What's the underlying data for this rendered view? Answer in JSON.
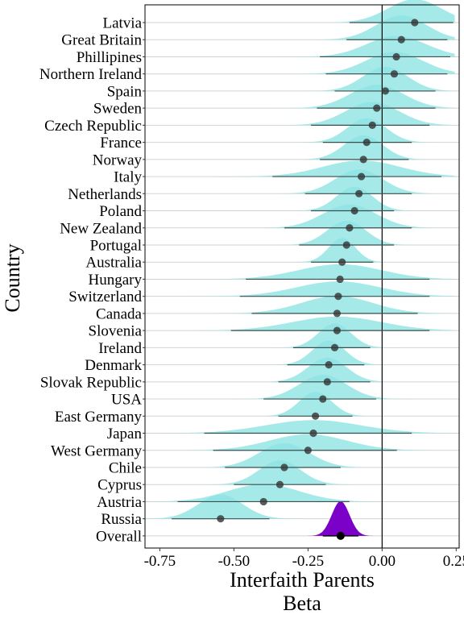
{
  "chart_data": {
    "type": "ridgeline",
    "title": "",
    "xlabel_line1": "Interfaith Parents",
    "xlabel_line2": "Beta",
    "ylabel": "Country",
    "xlim": [
      -0.8,
      0.26
    ],
    "xticks": [
      -0.75,
      -0.5,
      -0.25,
      0.0,
      0.25
    ],
    "xtick_labels": [
      "-0.75",
      "-0.50",
      "-0.25",
      "0.00",
      "0.25"
    ],
    "reference_line_x": 0.0,
    "grid": "horizontal",
    "colors": {
      "country_fill": "#8ee3e3",
      "overall_fill": "#7b00c8",
      "point": "#333333",
      "interval": "#3a4f4f",
      "gridline": "#d3d3d3"
    },
    "countries": [
      {
        "name": "Latvia",
        "estimate": 0.11,
        "low": -0.11,
        "high": 0.27,
        "bulk_high": 0.24,
        "sd": 0.09
      },
      {
        "name": "Great Britain",
        "estimate": 0.065,
        "low": -0.12,
        "high": 0.25,
        "bulk_high": 0.22,
        "sd": 0.085
      },
      {
        "name": "Phillipines",
        "estimate": 0.048,
        "low": -0.21,
        "high": 0.26,
        "bulk_high": 0.23,
        "sd": 0.1
      },
      {
        "name": "Northern Ireland",
        "estimate": 0.041,
        "low": -0.19,
        "high": 0.25,
        "bulk_high": 0.22,
        "sd": 0.095
      },
      {
        "name": "Spain",
        "estimate": 0.011,
        "low": -0.16,
        "high": 0.2,
        "bulk_high": 0.18,
        "sd": 0.075
      },
      {
        "name": "Sweden",
        "estimate": -0.018,
        "low": -0.22,
        "high": 0.2,
        "bulk_high": 0.18,
        "sd": 0.09
      },
      {
        "name": "Czech Republic",
        "estimate": -0.033,
        "low": -0.24,
        "high": 0.18,
        "bulk_high": 0.16,
        "sd": 0.09
      },
      {
        "name": "France",
        "estimate": -0.052,
        "low": -0.2,
        "high": 0.11,
        "bulk_high": 0.1,
        "sd": 0.065
      },
      {
        "name": "Norway",
        "estimate": -0.063,
        "low": -0.21,
        "high": 0.1,
        "bulk_high": 0.09,
        "sd": 0.065
      },
      {
        "name": "Italy",
        "estimate": -0.07,
        "low": -0.37,
        "high": 0.22,
        "bulk_high": 0.2,
        "sd": 0.13
      },
      {
        "name": "Netherlands",
        "estimate": -0.078,
        "low": -0.26,
        "high": 0.11,
        "bulk_high": 0.1,
        "sd": 0.08
      },
      {
        "name": "Poland",
        "estimate": -0.093,
        "low": -0.24,
        "high": 0.05,
        "bulk_high": 0.04,
        "sd": 0.06
      },
      {
        "name": "New Zealand",
        "estimate": -0.11,
        "low": -0.33,
        "high": 0.1,
        "bulk_high": 0.1,
        "sd": 0.09
      },
      {
        "name": "Portugal",
        "estimate": -0.12,
        "low": -0.28,
        "high": 0.05,
        "bulk_high": 0.04,
        "sd": 0.065
      },
      {
        "name": "Australia",
        "estimate": -0.135,
        "low": -0.24,
        "high": -0.02,
        "bulk_high": -0.03,
        "sd": 0.045
      },
      {
        "name": "Hungary",
        "estimate": -0.142,
        "low": -0.46,
        "high": 0.18,
        "bulk_high": 0.16,
        "sd": 0.14
      },
      {
        "name": "Switzerland",
        "estimate": -0.148,
        "low": -0.48,
        "high": 0.17,
        "bulk_high": 0.16,
        "sd": 0.14
      },
      {
        "name": "Canada",
        "estimate": -0.152,
        "low": -0.44,
        "high": 0.13,
        "bulk_high": 0.12,
        "sd": 0.12
      },
      {
        "name": "Slovenia",
        "estimate": -0.152,
        "low": -0.51,
        "high": 0.18,
        "bulk_high": 0.16,
        "sd": 0.15
      },
      {
        "name": "Ireland",
        "estimate": -0.16,
        "low": -0.3,
        "high": -0.03,
        "bulk_high": -0.04,
        "sd": 0.055
      },
      {
        "name": "Denmark",
        "estimate": -0.18,
        "low": -0.32,
        "high": -0.05,
        "bulk_high": -0.06,
        "sd": 0.055
      },
      {
        "name": "Slovak Republic",
        "estimate": -0.185,
        "low": -0.35,
        "high": -0.03,
        "bulk_high": -0.04,
        "sd": 0.065
      },
      {
        "name": "USA",
        "estimate": -0.2,
        "low": -0.4,
        "high": -0.01,
        "bulk_high": -0.02,
        "sd": 0.08
      },
      {
        "name": "East Germany",
        "estimate": -0.225,
        "low": -0.35,
        "high": -0.09,
        "bulk_high": -0.1,
        "sd": 0.055
      },
      {
        "name": "Japan",
        "estimate": -0.232,
        "low": -0.6,
        "high": 0.11,
        "bulk_high": 0.1,
        "sd": 0.16
      },
      {
        "name": "West Germany",
        "estimate": -0.25,
        "low": -0.57,
        "high": 0.06,
        "bulk_high": 0.05,
        "sd": 0.13
      },
      {
        "name": "Chile",
        "estimate": -0.33,
        "low": -0.53,
        "high": -0.13,
        "bulk_high": -0.14,
        "sd": 0.085
      },
      {
        "name": "Cyprus",
        "estimate": -0.345,
        "low": -0.5,
        "high": -0.18,
        "bulk_high": -0.19,
        "sd": 0.07
      },
      {
        "name": "Austria",
        "estimate": -0.4,
        "low": -0.69,
        "high": -0.1,
        "bulk_high": -0.11,
        "sd": 0.12
      },
      {
        "name": "Russia",
        "estimate": -0.545,
        "low": -0.71,
        "high": -0.37,
        "bulk_high": -0.38,
        "sd": 0.075
      }
    ],
    "overall": {
      "name": "Overall",
      "estimate": -0.14,
      "low": -0.2,
      "high": -0.08,
      "sd": 0.03
    }
  }
}
